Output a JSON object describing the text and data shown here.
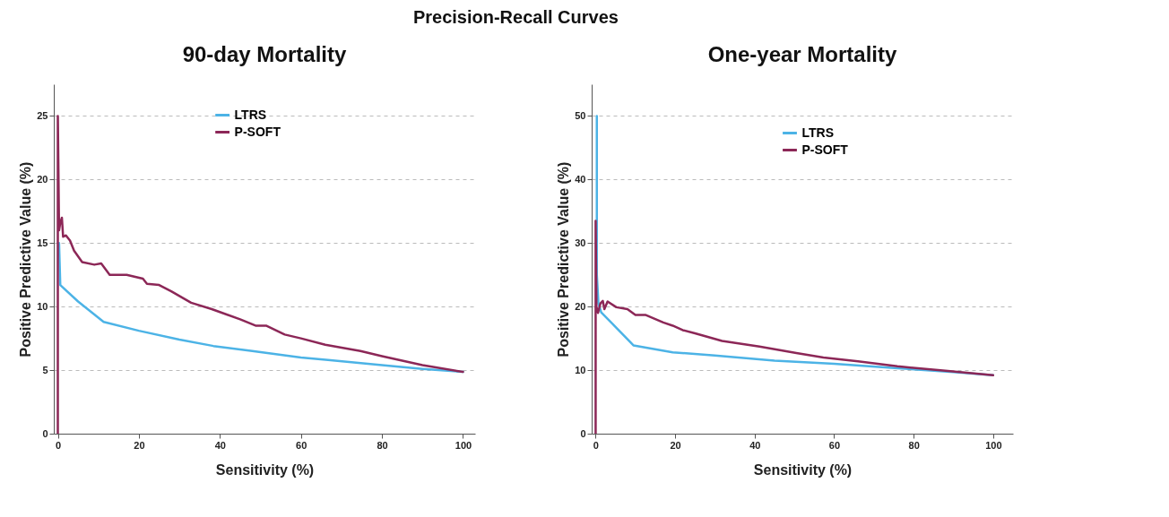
{
  "chart_data": [
    {
      "type": "line",
      "title": "90-day Mortality",
      "xlabel": "Sensitivity (%)",
      "ylabel": "Positive Predictive Value (%)",
      "annotations": [
        "Precision-Recall Curves"
      ],
      "xlim": [
        -1,
        103
      ],
      "ylim": [
        0,
        27.5
      ],
      "xticks": [
        0,
        20,
        40,
        60,
        80,
        100
      ],
      "yticks": [
        0,
        5,
        10,
        15,
        20,
        25
      ],
      "grid": "y",
      "legend": "top",
      "line_style": "solid",
      "marker": "none",
      "series": [
        {
          "name": "LTRS",
          "color": "#4cb3e6",
          "x": [
            0.3,
            0.6,
            5,
            11.3,
            20,
            30,
            38.4,
            48,
            60,
            66.7,
            80,
            90,
            100
          ],
          "values": [
            15,
            11.7,
            10.4,
            8.8,
            8.1,
            7.4,
            6.9,
            6.5,
            6.0,
            5.8,
            5.4,
            5.1,
            4.86
          ]
        },
        {
          "name": "P-SOFT",
          "color": "#8c2757",
          "x": [
            0,
            0,
            0.3,
            0.6,
            1,
            1.3,
            2,
            3,
            4,
            6,
            9,
            10.7,
            12.8,
            17,
            21,
            22,
            25,
            28,
            32.9,
            38,
            45,
            48.8,
            51.4,
            56,
            60,
            66,
            74.7,
            80,
            90,
            100
          ],
          "values": [
            0,
            25,
            16,
            16.6,
            17,
            15.5,
            15.6,
            15.2,
            14.4,
            13.5,
            13.3,
            13.4,
            12.5,
            12.5,
            12.2,
            11.8,
            11.7,
            11.2,
            10.3,
            9.8,
            9.0,
            8.5,
            8.5,
            7.8,
            7.5,
            7.0,
            6.5,
            6.1,
            5.4,
            4.86
          ]
        }
      ]
    },
    {
      "type": "line",
      "title": "One-year Mortality",
      "xlabel": "Sensitivity (%)",
      "ylabel": "Positive Predictive Value (%)",
      "xlim": [
        -1,
        105
      ],
      "ylim": [
        0,
        55
      ],
      "xticks": [
        0,
        20,
        40,
        60,
        80,
        100
      ],
      "yticks": [
        0,
        10,
        20,
        30,
        40,
        50
      ],
      "grid": "y",
      "legend": "top right",
      "line_style": "solid",
      "marker": "none",
      "series": [
        {
          "name": "LTRS",
          "color": "#4cb3e6",
          "x": [
            0.3,
            0.3,
            0.7,
            1.4,
            3.9,
            9.5,
            19.4,
            30,
            45,
            60,
            76,
            90,
            100
          ],
          "values": [
            50,
            25,
            20.5,
            19.1,
            17.5,
            13.9,
            12.8,
            12.3,
            11.5,
            11.0,
            10.3,
            9.7,
            9.2
          ]
        },
        {
          "name": "P-SOFT",
          "color": "#8c2757",
          "x": [
            0,
            0,
            0.2,
            0.6,
            1.2,
            1.8,
            2.2,
            3,
            5.2,
            8,
            10,
            12.5,
            17,
            19.4,
            21.9,
            25,
            31.8,
            41.2,
            50.5,
            57.3,
            66,
            75.9,
            88,
            100
          ],
          "values": [
            0,
            33.5,
            20,
            19,
            20.5,
            20.9,
            19.6,
            20.8,
            19.9,
            19.6,
            18.7,
            18.7,
            17.5,
            17.0,
            16.3,
            15.8,
            14.6,
            13.7,
            12.7,
            12.0,
            11.4,
            10.6,
            9.9,
            9.2
          ]
        }
      ]
    }
  ]
}
